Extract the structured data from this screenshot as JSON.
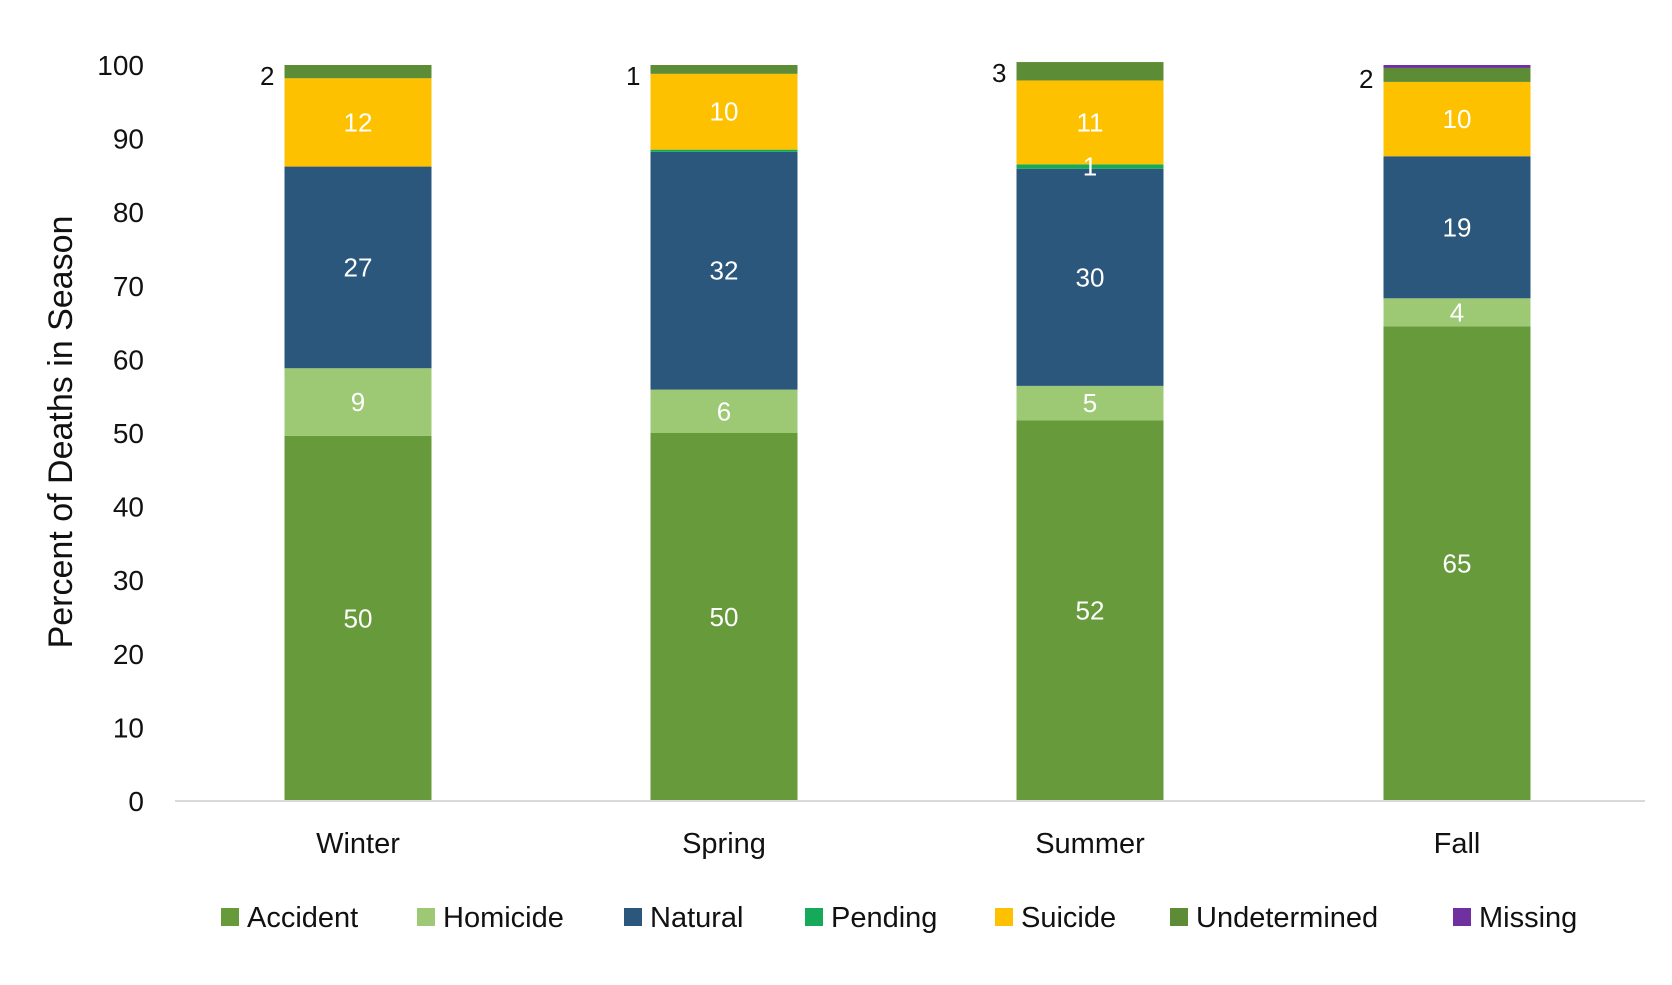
{
  "chart_data": {
    "type": "bar",
    "stacked": true,
    "ylabel": "Percent of Deaths in Season",
    "xlabel": "",
    "ylim": [
      0,
      100
    ],
    "yticks": [
      0,
      10,
      20,
      30,
      40,
      50,
      60,
      70,
      80,
      90,
      100
    ],
    "categories": [
      "Winter",
      "Spring",
      "Summer",
      "Fall"
    ],
    "series": [
      {
        "name": "Accident",
        "color": "#679a3a",
        "values": [
          49.6,
          50.0,
          51.7,
          64.5
        ],
        "labels": [
          "50",
          "50",
          "52",
          "65"
        ],
        "label_color": "#ffffff",
        "label_position": "inside"
      },
      {
        "name": "Homicide",
        "color": "#9dc874",
        "values": [
          9.2,
          5.9,
          4.7,
          3.8
        ],
        "labels": [
          "9",
          "6",
          "5",
          "4"
        ],
        "label_color": "#ffffff",
        "label_position": "inside"
      },
      {
        "name": "Natural",
        "color": "#2a577b",
        "values": [
          27.4,
          32.3,
          29.5,
          19.3
        ],
        "labels": [
          "27",
          "32",
          "30",
          "19"
        ],
        "label_color": "#ffffff",
        "label_position": "inside"
      },
      {
        "name": "Pending",
        "color": "#17a95a",
        "values": [
          0,
          0.3,
          0.6,
          0
        ],
        "labels": [
          "",
          "",
          "1",
          ""
        ],
        "label_color": "#ffffff",
        "label_position": "inside"
      },
      {
        "name": "Suicide",
        "color": "#fec100",
        "values": [
          12.0,
          10.3,
          11.4,
          10.1
        ],
        "labels": [
          "12",
          "10",
          "11",
          "10"
        ],
        "label_color": "#ffffff",
        "label_position": "inside"
      },
      {
        "name": "Undetermined",
        "color": "#5c8c35",
        "values": [
          1.8,
          1.2,
          2.5,
          1.9
        ],
        "labels": [
          "2",
          "1",
          "3",
          "2"
        ],
        "label_color": "#111111",
        "label_position": "left"
      },
      {
        "name": "Missing",
        "color": "#7030a0",
        "values": [
          0,
          0,
          0,
          0.4
        ],
        "labels": [
          "",
          "",
          "",
          ""
        ],
        "label_color": "#ffffff",
        "label_position": "inside"
      }
    ],
    "grid": false,
    "legend_position": "bottom"
  }
}
